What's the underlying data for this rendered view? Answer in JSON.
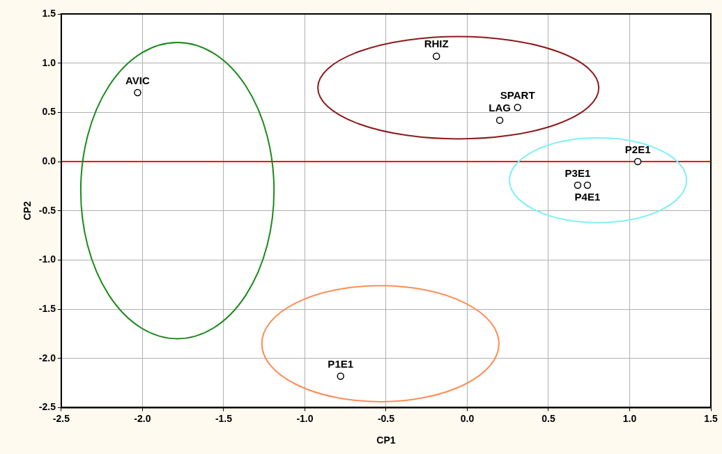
{
  "chart_data": {
    "type": "scatter",
    "xlabel": "CP1",
    "ylabel": "CP2",
    "xlim": [
      -2.5,
      1.5
    ],
    "xticks": [
      -2.5,
      {
        "value": -2,
        "label": "-2.0"
      },
      -1.5,
      {
        "value": -1,
        "label": "-1.0"
      },
      -0.5,
      {
        "value": 0,
        "label": "0.0"
      },
      0.5,
      {
        "value": 1,
        "label": "1.0"
      },
      1.5
    ],
    "ylim": [
      -2.5,
      1.5
    ],
    "yticks": [
      -2.5,
      {
        "value": -2,
        "label": "-2.0"
      },
      -1.5,
      {
        "value": -1,
        "label": "-1.0"
      },
      -0.5,
      {
        "value": 0,
        "label": "0.0"
      },
      0.5,
      {
        "value": 1,
        "label": "1.0"
      },
      1.5
    ],
    "grid": true,
    "legend": false,
    "series": [
      {
        "color": "#000000",
        "marker": "circle",
        "x": [
          -2.03,
          -0.19,
          0.31,
          0.2,
          1.05,
          0.68,
          0.74,
          -0.78
        ],
        "values": [
          0.7,
          1.07,
          0.55,
          0.42,
          0.0,
          -0.24,
          -0.24,
          -2.18
        ]
      }
    ],
    "ref_lines": [
      {
        "axis": "y",
        "value": 0,
        "color": "#ff0000"
      }
    ],
    "annotations": [
      {
        "text": "AVIC",
        "x": -2.03,
        "y": 0.7
      },
      {
        "text": "RHIZ",
        "x": -0.19,
        "y": 1.07
      },
      {
        "text": "SPART",
        "x": 0.31,
        "y": 0.55
      },
      {
        "text": "LAG",
        "x": 0.2,
        "y": 0.42
      },
      {
        "text": "P2E1",
        "x": 1.05,
        "y": 0.0
      },
      {
        "text": "P3E1",
        "x": 0.68,
        "y": -0.24
      },
      {
        "text": "P4E1",
        "x": 0.74,
        "y": -0.24
      },
      {
        "text": "P1E1",
        "x": -0.78,
        "y": -2.18
      }
    ]
  }
}
